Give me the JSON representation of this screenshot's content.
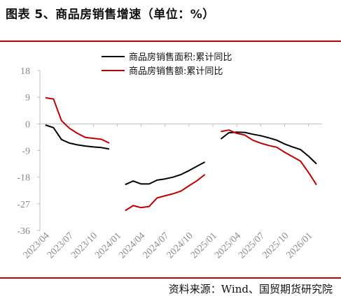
{
  "figure": {
    "title": "图表 5、商品房销售增速（单位：%）",
    "source": "资料来源：Wind、国贸期货研究院"
  },
  "chart_data": {
    "type": "line",
    "x": [
      "2023/04",
      "2023/05",
      "2023/06",
      "2023/07",
      "2023/08",
      "2023/09",
      "2023/10",
      "2023/11",
      "2023/12",
      "2024/01",
      "2024/02",
      "2024/03",
      "2024/04",
      "2024/05",
      "2024/06",
      "2024/07",
      "2024/08",
      "2024/09",
      "2024/10",
      "2024/11",
      "2024/12",
      "2025/01",
      "2025/02",
      "2025/03",
      "2025/04",
      "2025/05",
      "2025/06",
      "2025/07",
      "2025/08",
      "2025/09",
      "2025/10",
      "2025/11",
      "2025/12",
      "2026/01",
      "2026/02"
    ],
    "xticks": [
      "2023/04",
      "2023/07",
      "2023/10",
      "2024/01",
      "2024/04",
      "2024/07",
      "2024/10",
      "2025/01",
      "2025/04",
      "2025/07",
      "2025/10",
      "2026/01"
    ],
    "ylim": [
      -36,
      18
    ],
    "yticks": [
      18,
      9,
      0,
      -9,
      -18,
      -27,
      -36
    ],
    "legend_position": "top-right",
    "series": [
      {
        "name": "商品房销售面积:累计同比",
        "color": "#000000",
        "values": [
          -0.4,
          -1.3,
          -5.3,
          -6.5,
          -7.1,
          -7.5,
          -7.8,
          -8.0,
          -8.5,
          null,
          -20.5,
          -19.3,
          -20.3,
          -20.3,
          -19.0,
          -18.6,
          -18.0,
          -17.1,
          -15.8,
          -14.3,
          -12.9,
          null,
          -5.1,
          -3.0,
          -2.8,
          -2.9,
          -3.5,
          -4.0,
          -4.7,
          -5.5,
          -6.8,
          -7.8,
          -8.7,
          -10.9,
          -13.5
        ]
      },
      {
        "name": "商品房销售额:累计同比",
        "color": "#c00000",
        "values": [
          8.8,
          8.4,
          1.1,
          -1.5,
          -3.2,
          -4.6,
          -4.9,
          -5.2,
          -6.5,
          null,
          -29.3,
          -27.6,
          -28.3,
          -27.9,
          -25.0,
          -24.3,
          -23.6,
          -22.7,
          -20.9,
          -19.2,
          -17.1,
          null,
          -2.6,
          -2.1,
          -3.2,
          -3.8,
          -5.5,
          -6.5,
          -7.3,
          -7.9,
          -9.6,
          -11.1,
          -12.6,
          -16.4,
          -20.6
        ]
      }
    ]
  }
}
